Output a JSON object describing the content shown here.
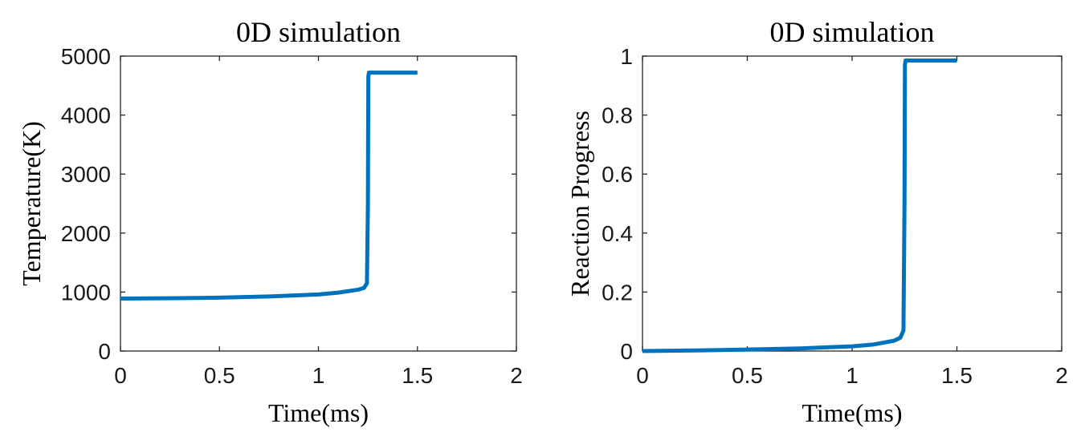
{
  "chart_data": [
    {
      "type": "line",
      "title": "0D simulation",
      "xlabel": "Time(ms)",
      "ylabel": "Temperature(K)",
      "xlim": [
        0,
        2
      ],
      "ylim": [
        0,
        5000
      ],
      "xticks": [
        0,
        0.5,
        1,
        1.5,
        2
      ],
      "xtick_labels": [
        "0",
        "0.5",
        "1",
        "1.5",
        "2"
      ],
      "yticks": [
        0,
        1000,
        2000,
        3000,
        4000,
        5000
      ],
      "ytick_labels": [
        "0",
        "1000",
        "2000",
        "3000",
        "4000",
        "5000"
      ],
      "grid": false,
      "series": [
        {
          "color": "#0072BD",
          "x": [
            0,
            0.25,
            0.5,
            0.75,
            1.0,
            1.1,
            1.2,
            1.23,
            1.245,
            1.25,
            1.252,
            1.255,
            1.4,
            1.5
          ],
          "y": [
            890,
            895,
            905,
            925,
            960,
            990,
            1040,
            1070,
            1150,
            2500,
            4650,
            4720,
            4720,
            4720
          ]
        }
      ]
    },
    {
      "type": "line",
      "title": "0D simulation",
      "xlabel": "Time(ms)",
      "ylabel": "Reaction Progress",
      "xlim": [
        0,
        2
      ],
      "ylim": [
        0,
        1
      ],
      "xticks": [
        0,
        0.5,
        1,
        1.5,
        2
      ],
      "xtick_labels": [
        "0",
        "0.5",
        "1",
        "1.5",
        "2"
      ],
      "yticks": [
        0,
        0.2,
        0.4,
        0.6,
        0.8,
        1
      ],
      "ytick_labels": [
        "0",
        "0.2",
        "0.4",
        "0.6",
        "0.8",
        "1"
      ],
      "grid": false,
      "series": [
        {
          "color": "#0072BD",
          "x": [
            0,
            0.25,
            0.5,
            0.75,
            1.0,
            1.1,
            1.2,
            1.23,
            1.245,
            1.25,
            1.252,
            1.255,
            1.4,
            1.5
          ],
          "y": [
            0.0,
            0.002,
            0.005,
            0.009,
            0.016,
            0.022,
            0.035,
            0.045,
            0.07,
            0.5,
            0.97,
            0.985,
            0.985,
            0.985
          ]
        }
      ]
    }
  ]
}
